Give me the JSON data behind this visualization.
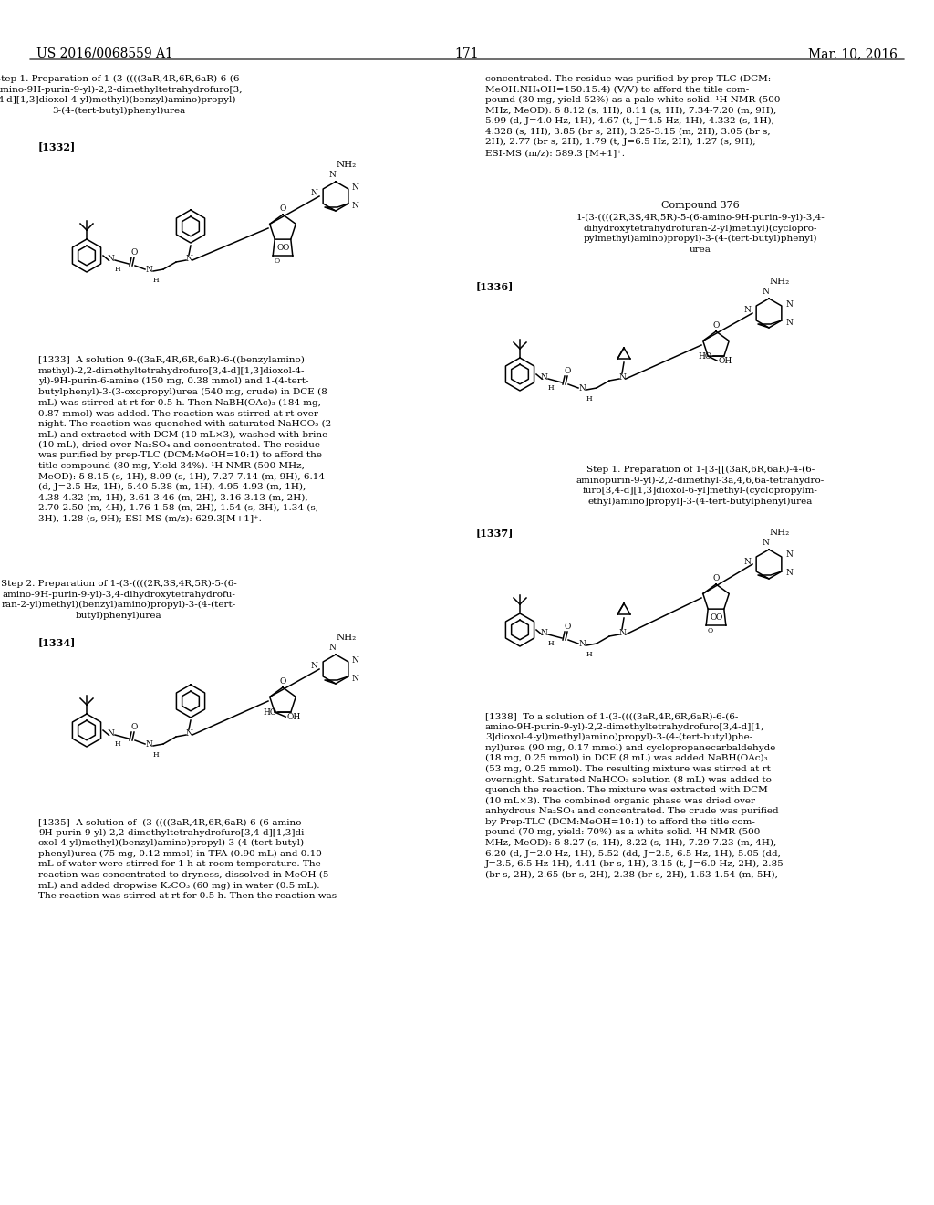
{
  "background_color": "#ffffff",
  "header_left": "US 2016/0068559 A1",
  "header_center": "171",
  "header_right": "Mar. 10, 2016",
  "header_fontsize": 10,
  "body_fontsize": 7.5,
  "label_fontsize": 8
}
